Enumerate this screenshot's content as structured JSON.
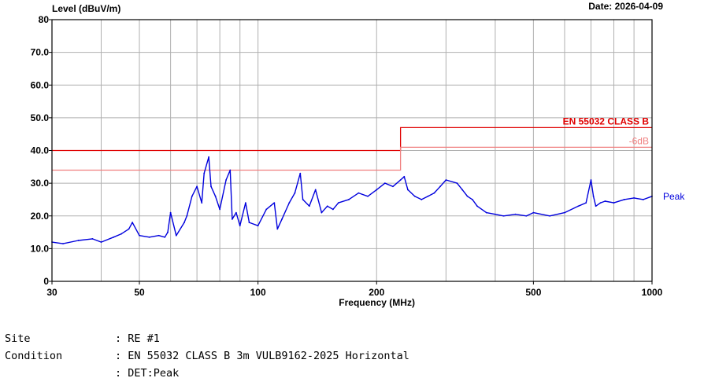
{
  "header": {
    "level_label": "Level (dBuV/m)",
    "date": "Date: 2026-04-09"
  },
  "info": [
    {
      "key": "Site",
      "value": ": RE #1"
    },
    {
      "key": "Condition",
      "value": ": EN 55032 CLASS B 3m VULB9162-2025 Horizontal"
    },
    {
      "key": "",
      "value": ": DET:Peak"
    }
  ],
  "chart_data": {
    "type": "line",
    "title": "",
    "xlabel": "Frequency (MHz)",
    "ylabel": "Level (dBuV/m)",
    "x_scale": "log",
    "xlim": [
      30,
      1000
    ],
    "ylim": [
      0,
      80
    ],
    "x_ticks": [
      30,
      50,
      100,
      200,
      500,
      1000
    ],
    "x_tick_labels": [
      "30",
      "50",
      "100",
      "200",
      "500",
      "1000"
    ],
    "y_ticks": [
      0,
      10,
      20,
      30,
      40,
      50,
      60,
      70,
      80
    ],
    "y_tick_labels": [
      "0",
      "10.0",
      "20.0",
      "30.0",
      "40.0",
      "50.0",
      "60.0",
      "70.0",
      "80"
    ],
    "grid": true,
    "limit_lines": [
      {
        "name": "EN 55032 CLASS B",
        "color": "#e00000",
        "points": [
          [
            30,
            40
          ],
          [
            230,
            40
          ],
          [
            230,
            47
          ],
          [
            1000,
            47
          ]
        ]
      },
      {
        "name": "-6dB",
        "color": "#f08080",
        "points": [
          [
            30,
            34
          ],
          [
            230,
            34
          ],
          [
            230,
            41
          ],
          [
            1000,
            41
          ]
        ]
      }
    ],
    "series": [
      {
        "name": "Peak",
        "color": "#0000dd",
        "x": [
          30,
          32,
          35,
          38,
          40,
          43,
          45,
          47,
          48,
          50,
          53,
          56,
          58,
          59,
          60,
          62,
          65,
          66,
          68,
          70,
          72,
          73,
          75,
          76,
          78,
          80,
          83,
          85,
          86,
          88,
          90,
          93,
          95,
          100,
          105,
          110,
          112,
          115,
          120,
          124,
          128,
          130,
          135,
          140,
          145,
          150,
          155,
          160,
          170,
          180,
          190,
          200,
          210,
          220,
          230,
          235,
          240,
          250,
          260,
          270,
          280,
          290,
          300,
          320,
          330,
          340,
          350,
          360,
          380,
          400,
          420,
          450,
          480,
          500,
          550,
          600,
          650,
          680,
          700,
          710,
          720,
          740,
          760,
          800,
          850,
          900,
          950,
          1000
        ],
        "y": [
          12,
          11.5,
          12.5,
          13,
          12,
          13.5,
          14.5,
          16,
          18,
          14,
          13.5,
          14,
          13.5,
          15,
          21,
          14,
          18,
          20,
          26,
          29,
          24,
          33,
          38,
          29,
          26,
          22,
          31,
          34,
          19,
          21,
          17,
          24,
          18,
          17,
          22,
          24,
          16,
          19,
          24,
          27,
          33,
          25,
          23,
          28,
          21,
          23,
          22,
          24,
          25,
          27,
          26,
          28,
          30,
          29,
          31,
          32,
          28,
          26,
          25,
          26,
          27,
          29,
          31,
          30,
          28,
          26,
          25,
          23,
          21,
          20.5,
          20,
          20.5,
          20,
          21,
          20,
          21,
          23,
          24,
          31,
          26,
          23,
          24,
          24.5,
          24,
          25,
          25.5,
          25,
          26
        ]
      }
    ],
    "series_label": "Peak"
  }
}
